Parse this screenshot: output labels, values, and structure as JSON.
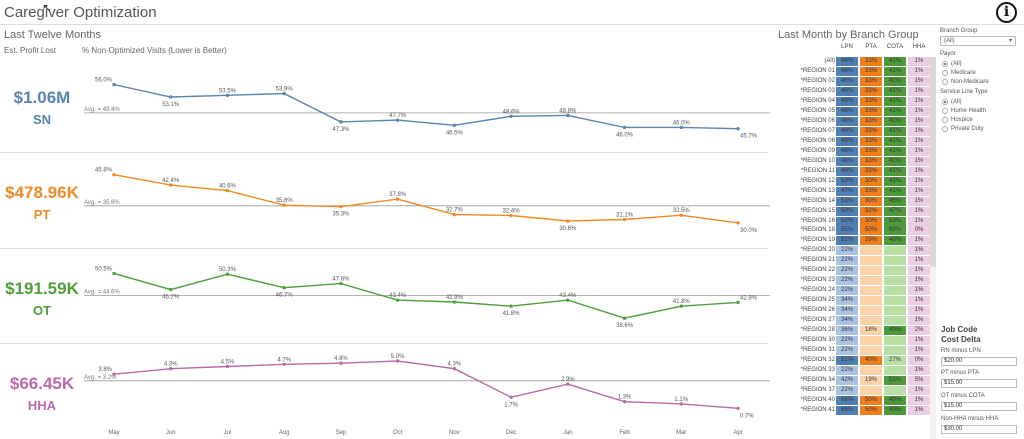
{
  "title": "Caregiver Optimization",
  "info_icon": "i",
  "cursor_icon": "↖",
  "left": {
    "title": "Last Twelve Months",
    "est_profit_label": "Est. Profit Lost",
    "chart_label": "% Non-Optimized Visits (Lower is Better)"
  },
  "kpis": [
    {
      "value": "$1.06M",
      "label": "SN",
      "color": "#5b84b1"
    },
    {
      "value": "$478.96K",
      "label": "PT",
      "color": "#f08a24"
    },
    {
      "value": "$191.59K",
      "label": "OT",
      "color": "#4f9e3a"
    },
    {
      "value": "$66.45K",
      "label": "HHA",
      "color": "#b86aa9"
    }
  ],
  "chart_data": {
    "type": "line",
    "x": [
      "May",
      "Jun",
      "Jul",
      "Aug",
      "Sep",
      "Oct",
      "Nov",
      "Dec",
      "Jan",
      "Feb",
      "Mar",
      "Apr"
    ],
    "series": [
      {
        "name": "SN",
        "color": "#5b84b1",
        "values": [
          56.0,
          53.1,
          53.5,
          53.9,
          47.3,
          47.7,
          46.5,
          48.6,
          48.8,
          46.0,
          46.0,
          45.7
        ],
        "avg": 49.4,
        "avg_label": "Avg. = 49.4%",
        "ylim": [
          44,
          58
        ]
      },
      {
        "name": "PT",
        "color": "#f08a24",
        "values": [
          45.8,
          42.4,
          40.6,
          35.8,
          35.3,
          37.8,
          32.7,
          32.4,
          30.6,
          31.1,
          32.5,
          30.0
        ],
        "avg": 35.6,
        "avg_label": "Avg. = 35.6%",
        "ylim": [
          27,
          48
        ]
      },
      {
        "name": "OT",
        "color": "#4f9e3a",
        "values": [
          50.5,
          46.2,
          50.3,
          46.7,
          47.8,
          43.4,
          42.9,
          41.8,
          43.4,
          38.6,
          41.8,
          42.8
        ],
        "avg": 44.6,
        "avg_label": "Avg. = 44.6%",
        "ylim": [
          36,
          53
        ]
      },
      {
        "name": "HHA",
        "color": "#b86aa9",
        "values": [
          3.8,
          4.3,
          4.5,
          4.7,
          4.8,
          5.0,
          4.3,
          1.7,
          2.9,
          1.3,
          1.1,
          0.7
        ],
        "avg": 3.2,
        "avg_label": "Avg. = 3.2%",
        "ylim": [
          0,
          6
        ]
      }
    ],
    "labels": [
      [
        "56.0%",
        "53.1%",
        "53.5%",
        "53.9%",
        "47.3%",
        "47.7%",
        "46.5%",
        "48.6%",
        "48.8%",
        "46.0%",
        "46.0%",
        "45.7%"
      ],
      [
        "45.8%",
        "42.4%",
        "40.6%",
        "35.8%",
        "35.3%",
        "37.8%",
        "32.7%",
        "32.4%",
        "30.6%",
        "31.1%",
        "32.5%",
        "30.0%"
      ],
      [
        "50.5%",
        "46.2%",
        "50.3%",
        "46.7%",
        "47.8%",
        "43.4%",
        "42.9%",
        "41.8%",
        "43.4%",
        "38.6%",
        "41.8%",
        "42.8%"
      ],
      [
        "3.8%",
        "4.3%",
        "4.5%",
        "4.7%",
        "4.8%",
        "5.0%",
        "4.3%",
        "1.7%",
        "2.9%",
        "1.3%",
        "1.1%",
        "0.7%"
      ]
    ]
  },
  "branch": {
    "title": "Last Month by Branch Group",
    "columns": [
      "LPN",
      "PTA",
      "COTA",
      "HHA"
    ],
    "colors": {
      "lpn_hi": "#4f7fb3",
      "lpn_lo": "#a9c4e2",
      "pta_hi": "#f07d1e",
      "pta_lo": "#fbd3a8",
      "cota_hi": "#4e9a3b",
      "cota_lo": "#b8dfa6",
      "hha": "#eccde6"
    },
    "rows": [
      [
        "(All)",
        "46%",
        "33%",
        "41%",
        "1%"
      ],
      [
        "*REGION 01",
        "46%",
        "33%",
        "41%",
        "1%"
      ],
      [
        "*REGION 02",
        "46%",
        "33%",
        "41%",
        "1%"
      ],
      [
        "*REGION 03",
        "46%",
        "33%",
        "41%",
        "1%"
      ],
      [
        "*REGION 04",
        "48%",
        "33%",
        "41%",
        "1%"
      ],
      [
        "*REGION 05",
        "48%",
        "33%",
        "41%",
        "1%"
      ],
      [
        "*REGION 06",
        "48%",
        "33%",
        "41%",
        "1%"
      ],
      [
        "*REGION 07",
        "48%",
        "33%",
        "41%",
        "1%"
      ],
      [
        "*REGION 08",
        "48%",
        "33%",
        "41%",
        "1%"
      ],
      [
        "*REGION 09",
        "48%",
        "33%",
        "41%",
        "1%"
      ],
      [
        "*REGION 10",
        "48%",
        "33%",
        "41%",
        "1%"
      ],
      [
        "*REGION 11",
        "48%",
        "33%",
        "41%",
        "1%"
      ],
      [
        "*REGION 12",
        "53%",
        "30%",
        "43%",
        "1%"
      ],
      [
        "*REGION 13",
        "47%",
        "33%",
        "41%",
        "1%"
      ],
      [
        "*REGION 14",
        "53%",
        "30%",
        "46%",
        "1%"
      ],
      [
        "*REGION 15",
        "50%",
        "32%",
        "47%",
        "1%"
      ],
      [
        "*REGION 16",
        "52%",
        "30%",
        "53%",
        "1%"
      ],
      [
        "*REGION 18",
        "65%",
        "50%",
        "60%",
        "0%"
      ],
      [
        "*REGION 19",
        "51%",
        "29%",
        "49%",
        "1%"
      ],
      [
        "*REGION 20",
        "22%",
        "",
        "",
        "1%"
      ],
      [
        "*REGION 21",
        "22%",
        "",
        "",
        "1%"
      ],
      [
        "*REGION 22",
        "22%",
        "",
        "",
        "1%"
      ],
      [
        "*REGION 23",
        "22%",
        "",
        "",
        "1%"
      ],
      [
        "*REGION 24",
        "22%",
        "",
        "",
        "1%"
      ],
      [
        "*REGION 25",
        "34%",
        "",
        "",
        "1%"
      ],
      [
        "*REGION 26",
        "34%",
        "",
        "",
        "1%"
      ],
      [
        "*REGION 27",
        "34%",
        "",
        "",
        "1%"
      ],
      [
        "*REGION 28",
        "36%",
        "18%",
        "49%",
        "2%"
      ],
      [
        "*REGION 30",
        "22%",
        "",
        "",
        "1%"
      ],
      [
        "*REGION 31",
        "22%",
        "",
        "",
        "1%"
      ],
      [
        "*REGION 32",
        "51%",
        "40%",
        "27%",
        "0%"
      ],
      [
        "*REGION 33",
        "22%",
        "",
        "",
        "1%"
      ],
      [
        "*REGION 34",
        "42%",
        "19%",
        "51%",
        "5%"
      ],
      [
        "*REGION 37",
        "22%",
        "",
        "",
        "1%"
      ],
      [
        "*REGION 40",
        "68%",
        "50%",
        "49%",
        "1%"
      ],
      [
        "*REGION 41",
        "68%",
        "50%",
        "49%",
        "1%"
      ]
    ]
  },
  "filters": {
    "branch_group_label": "Branch Group",
    "branch_group_value": "(All)",
    "chevron_icon": "▾",
    "payor_label": "Payor",
    "payor_options": [
      "(All)",
      "Medicare",
      "Non-Medicare"
    ],
    "service_label": "Service Line Type",
    "service_options": [
      "(All)",
      "Home Health",
      "Hospice",
      "Private Duty"
    ]
  },
  "job": {
    "title_line1": "Job Code",
    "title_line2": "Cost Delta",
    "items": [
      {
        "label": "RN minus LPN",
        "value": "$20.00"
      },
      {
        "label": "PT minus PTA",
        "value": "$15.00"
      },
      {
        "label": "OT minus COTA",
        "value": "$15.00"
      },
      {
        "label": "Non-HHA minus HHA",
        "value": "$30.00"
      }
    ]
  }
}
